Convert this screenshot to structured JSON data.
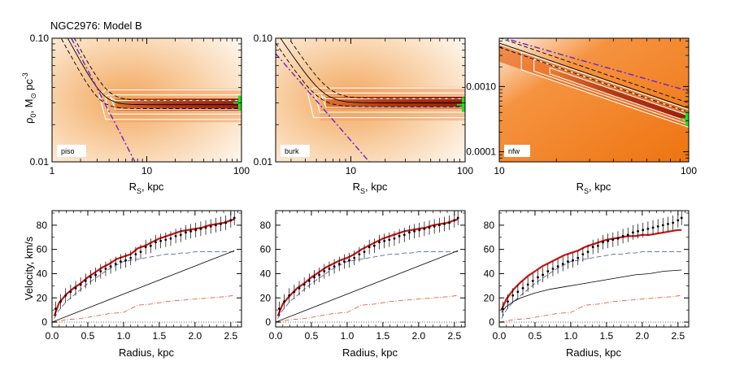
{
  "figure": {
    "title": "NGC2976: Model B",
    "top_ylabel_main": "ρ",
    "top_ylabel_sub": "0",
    "top_ylabel_rest": ", M",
    "top_ylabel_sun": "⊙",
    "top_ylabel_unit": "pc",
    "top_ylabel_exp": "-3",
    "top_xlabel_main": "R",
    "top_xlabel_sub": "S",
    "top_xlabel_rest": ", kpc",
    "bottom_ylabel": "Velocity, km/s",
    "bottom_xlabel": "Radius, kpc"
  },
  "colors": {
    "model": "#cc1111",
    "halo": "#000000",
    "disk": "#5566aa",
    "gas": "#e06040",
    "data": "#000000",
    "contour": "#ffffff",
    "pivot_line": "#6622cc",
    "marker": "#22dd22"
  },
  "chart_data": [
    {
      "type": "heatmap",
      "label": "piso",
      "x": {
        "scale": "log",
        "range": [
          1,
          100
        ],
        "tick_values": [
          1,
          10,
          100
        ],
        "tick_labels": [
          "1",
          "10",
          "100"
        ]
      },
      "y": {
        "scale": "log",
        "range": [
          0.01,
          0.1
        ],
        "tick_values": [
          0.01,
          0.1
        ],
        "tick_labels": [
          "0.01",
          "0.10"
        ]
      },
      "ridge_rho": 0.029,
      "ridge_onset_rs": 4.5,
      "steep_rho_at_rs1": 0.17,
      "steep_slope": -1.4,
      "pivot_line": {
        "rs": [
          1.6,
          7.5
        ],
        "rho": [
          0.1,
          0.01
        ]
      },
      "best_fit": {
        "rs": 100,
        "rho": 0.03
      }
    },
    {
      "type": "heatmap",
      "label": "burk",
      "x": {
        "scale": "log",
        "range": [
          2.2,
          100
        ],
        "tick_values": [
          10,
          100
        ],
        "tick_labels": [
          "10",
          "100"
        ]
      },
      "y": {
        "scale": "log",
        "range": [
          0.01,
          0.1
        ],
        "tick_values": [
          0.01,
          0.1
        ],
        "tick_labels": [
          "0.01",
          "0.10"
        ]
      },
      "ridge_rho": 0.03,
      "ridge_onset_rs": 6.0,
      "steep_rho_at_rs1": 0.33,
      "steep_slope": -1.35,
      "pivot_line": {
        "rs": [
          2.2,
          14.5
        ],
        "rho": [
          0.075,
          0.01
        ]
      },
      "best_fit": {
        "rs": 100,
        "rho": 0.029
      }
    },
    {
      "type": "heatmap",
      "label": "nfw",
      "x": {
        "scale": "log",
        "range": [
          10,
          100
        ],
        "tick_values": [
          10,
          100
        ],
        "tick_labels": [
          "10",
          "100"
        ]
      },
      "y": {
        "scale": "log",
        "range": [
          7e-05,
          0.0055
        ],
        "tick_values": [
          0.0001,
          0.001
        ],
        "tick_labels": [
          "0.0001",
          "0.0010"
        ]
      },
      "ridge_rho_at_10": 0.0032,
      "ridge_slope": -1.0,
      "pivot_line": {
        "rs": [
          10,
          100
        ],
        "rho": [
          0.0058,
          0.00085
        ]
      },
      "best_fit": {
        "rs": 100,
        "rho": 0.00032
      }
    },
    {
      "type": "line",
      "title": "",
      "xlabel": "Radius, kpc",
      "ylabel": "Velocity, km/s",
      "xlim": [
        0,
        2.65
      ],
      "ylim": [
        -4,
        92
      ],
      "x_ticks": [
        0,
        0.5,
        1,
        1.5,
        2,
        2.5
      ],
      "x_tick_labels": [
        "0.0",
        "0.5",
        "1.0",
        "1.5",
        "2.0",
        "2.5"
      ],
      "y_ticks": [
        0,
        20,
        40,
        60,
        80
      ],
      "y_tick_labels": [
        "0",
        "20",
        "40",
        "60",
        "80"
      ],
      "series": [
        {
          "name": "model",
          "x": [
            0.03,
            0.1,
            0.2,
            0.3,
            0.4,
            0.5,
            0.6,
            0.7,
            0.8,
            0.9,
            1.0,
            1.1,
            1.2,
            1.3,
            1.4,
            1.5,
            1.6,
            1.7,
            1.8,
            1.9,
            2.0,
            2.1,
            2.2,
            2.3,
            2.4,
            2.5,
            2.55
          ],
          "y": [
            5,
            16,
            23,
            28,
            32,
            37,
            41,
            45,
            48,
            52,
            54,
            56,
            61,
            63,
            66,
            69,
            71,
            73,
            75,
            76,
            77,
            78,
            80,
            81,
            82,
            84,
            85
          ]
        },
        {
          "name": "halo",
          "x": [
            0,
            2.55
          ],
          "y": [
            0,
            59
          ]
        },
        {
          "name": "disk",
          "x": [
            0.03,
            0.1,
            0.2,
            0.3,
            0.4,
            0.5,
            0.6,
            0.7,
            0.8,
            0.9,
            1.0,
            1.1,
            1.2,
            1.3,
            1.4,
            1.5,
            1.6,
            1.7,
            1.8,
            1.9,
            2.0,
            2.1,
            2.2,
            2.3,
            2.4,
            2.5,
            2.55
          ],
          "y": [
            3,
            10,
            17,
            22,
            27,
            32,
            36,
            40,
            44,
            47,
            50,
            51,
            52,
            53,
            54,
            55,
            56,
            56,
            57,
            57,
            58,
            58,
            58,
            58,
            58,
            58,
            58
          ]
        },
        {
          "name": "gas",
          "x": [
            0,
            0.2,
            0.4,
            0.6,
            0.8,
            1.0,
            1.1,
            1.2,
            1.4,
            1.6,
            1.8,
            2.0,
            2.2,
            2.4,
            2.55
          ],
          "y": [
            0,
            2,
            3,
            5,
            7,
            8,
            11,
            14,
            15,
            17,
            18,
            19,
            20,
            21,
            22
          ]
        },
        {
          "name": "data",
          "x": [
            0.05,
            0.12,
            0.19,
            0.26,
            0.33,
            0.4,
            0.47,
            0.54,
            0.61,
            0.68,
            0.75,
            0.82,
            0.89,
            0.96,
            1.03,
            1.1,
            1.17,
            1.24,
            1.31,
            1.38,
            1.45,
            1.52,
            1.59,
            1.66,
            1.73,
            1.8,
            1.87,
            1.94,
            2.01,
            2.08,
            2.15,
            2.22,
            2.29,
            2.36,
            2.43,
            2.5,
            2.55
          ],
          "y": [
            11,
            17,
            22,
            25,
            28,
            31,
            34,
            37,
            39,
            42,
            44,
            46,
            48,
            50,
            51,
            53,
            56,
            58,
            62,
            63,
            66,
            67,
            68,
            69,
            71,
            72,
            74,
            75,
            76,
            77,
            78,
            79,
            80,
            81,
            82,
            84,
            86
          ],
          "err": [
            6,
            6,
            6,
            6,
            6,
            6,
            6,
            6,
            6,
            6,
            6,
            6,
            6,
            6,
            6,
            6,
            6,
            6,
            6,
            6,
            6,
            6,
            6,
            6,
            6,
            6,
            6,
            6,
            6,
            6,
            6,
            6,
            6,
            6,
            6,
            6,
            6
          ]
        }
      ]
    },
    {
      "type": "line",
      "title": "",
      "xlabel": "Radius, kpc",
      "ylabel": "",
      "xlim": [
        0,
        2.65
      ],
      "ylim": [
        -4,
        92
      ],
      "x_ticks": [
        0,
        0.5,
        1,
        1.5,
        2,
        2.5
      ],
      "x_tick_labels": [
        "0.0",
        "0.5",
        "1.0",
        "1.5",
        "2.0",
        "2.5"
      ],
      "y_ticks": [
        0,
        20,
        40,
        60,
        80
      ],
      "y_tick_labels": [
        "0",
        "20",
        "40",
        "60",
        "80"
      ],
      "series": [
        {
          "name": "model",
          "x": [
            0.03,
            0.1,
            0.2,
            0.3,
            0.4,
            0.5,
            0.6,
            0.7,
            0.8,
            0.9,
            1.0,
            1.1,
            1.2,
            1.3,
            1.4,
            1.5,
            1.6,
            1.7,
            1.8,
            1.9,
            2.0,
            2.1,
            2.2,
            2.3,
            2.4,
            2.5,
            2.55
          ],
          "y": [
            5,
            15,
            22,
            28,
            32,
            37,
            41,
            45,
            48,
            51,
            53,
            56,
            60,
            63,
            66,
            69,
            71,
            73,
            75,
            76,
            77,
            78,
            80,
            81,
            82,
            84,
            85
          ]
        },
        {
          "name": "halo",
          "x": [
            0,
            2.55
          ],
          "y": [
            0,
            59
          ]
        },
        {
          "name": "disk",
          "x": [
            0.03,
            0.1,
            0.2,
            0.3,
            0.4,
            0.5,
            0.6,
            0.7,
            0.8,
            0.9,
            1.0,
            1.1,
            1.2,
            1.3,
            1.4,
            1.5,
            1.6,
            1.7,
            1.8,
            1.9,
            2.0,
            2.1,
            2.2,
            2.3,
            2.4,
            2.5,
            2.55
          ],
          "y": [
            3,
            10,
            17,
            22,
            27,
            32,
            36,
            40,
            44,
            47,
            50,
            51,
            52,
            53,
            54,
            55,
            56,
            56,
            57,
            57,
            58,
            58,
            58,
            58,
            58,
            58,
            58
          ]
        },
        {
          "name": "gas",
          "x": [
            0,
            0.2,
            0.4,
            0.6,
            0.8,
            1.0,
            1.1,
            1.2,
            1.4,
            1.6,
            1.8,
            2.0,
            2.2,
            2.4,
            2.55
          ],
          "y": [
            0,
            2,
            3,
            5,
            7,
            8,
            11,
            14,
            15,
            17,
            18,
            19,
            20,
            21,
            22
          ]
        },
        {
          "name": "data",
          "x": [
            0.05,
            0.12,
            0.19,
            0.26,
            0.33,
            0.4,
            0.47,
            0.54,
            0.61,
            0.68,
            0.75,
            0.82,
            0.89,
            0.96,
            1.03,
            1.1,
            1.17,
            1.24,
            1.31,
            1.38,
            1.45,
            1.52,
            1.59,
            1.66,
            1.73,
            1.8,
            1.87,
            1.94,
            2.01,
            2.08,
            2.15,
            2.22,
            2.29,
            2.36,
            2.43,
            2.5,
            2.55
          ],
          "y": [
            11,
            17,
            22,
            25,
            28,
            31,
            34,
            37,
            39,
            42,
            44,
            46,
            48,
            50,
            51,
            53,
            56,
            58,
            62,
            63,
            66,
            67,
            68,
            69,
            71,
            72,
            74,
            75,
            76,
            77,
            78,
            79,
            80,
            81,
            82,
            84,
            86
          ],
          "err": [
            6,
            6,
            6,
            6,
            6,
            6,
            6,
            6,
            6,
            6,
            6,
            6,
            6,
            6,
            6,
            6,
            6,
            6,
            6,
            6,
            6,
            6,
            6,
            6,
            6,
            6,
            6,
            6,
            6,
            6,
            6,
            6,
            6,
            6,
            6,
            6,
            6
          ]
        }
      ]
    },
    {
      "type": "line",
      "title": "",
      "xlabel": "Radius, kpc",
      "ylabel": "",
      "xlim": [
        0,
        2.65
      ],
      "ylim": [
        -4,
        92
      ],
      "x_ticks": [
        0,
        0.5,
        1,
        1.5,
        2,
        2.5
      ],
      "x_tick_labels": [
        "0.0",
        "0.5",
        "1.0",
        "1.5",
        "2.0",
        "2.5"
      ],
      "y_ticks": [
        0,
        20,
        40,
        60,
        80
      ],
      "y_tick_labels": [
        "0",
        "20",
        "40",
        "60",
        "80"
      ],
      "series": [
        {
          "name": "model",
          "x": [
            0.03,
            0.1,
            0.2,
            0.3,
            0.4,
            0.5,
            0.6,
            0.7,
            0.8,
            0.9,
            1.0,
            1.1,
            1.2,
            1.3,
            1.4,
            1.5,
            1.6,
            1.7,
            1.8,
            1.9,
            2.0,
            2.1,
            2.2,
            2.3,
            2.4,
            2.5,
            2.55
          ],
          "y": [
            10,
            19,
            27,
            33,
            38,
            42,
            46,
            49,
            52,
            55,
            57,
            59,
            62,
            64,
            66,
            68,
            69,
            70,
            71,
            71,
            72,
            72,
            73,
            74,
            75,
            76,
            76
          ]
        },
        {
          "name": "halo",
          "x": [
            0.03,
            0.1,
            0.2,
            0.3,
            0.4,
            0.5,
            0.7,
            0.9,
            1.1,
            1.3,
            1.5,
            1.7,
            1.9,
            2.1,
            2.3,
            2.55
          ],
          "y": [
            8,
            13,
            17,
            20,
            22,
            24,
            27,
            29,
            31,
            33,
            35,
            37,
            39,
            40,
            42,
            43
          ]
        },
        {
          "name": "disk",
          "x": [
            0.03,
            0.1,
            0.2,
            0.3,
            0.4,
            0.5,
            0.6,
            0.7,
            0.8,
            0.9,
            1.0,
            1.1,
            1.2,
            1.3,
            1.4,
            1.5,
            1.6,
            1.7,
            1.8,
            1.9,
            2.0,
            2.1,
            2.2,
            2.3,
            2.4,
            2.5,
            2.55
          ],
          "y": [
            3,
            10,
            17,
            22,
            27,
            32,
            36,
            40,
            44,
            47,
            50,
            51,
            52,
            53,
            54,
            55,
            56,
            56,
            57,
            57,
            58,
            58,
            58,
            58,
            58,
            58,
            58
          ]
        },
        {
          "name": "gas",
          "x": [
            0,
            0.2,
            0.4,
            0.6,
            0.8,
            1.0,
            1.1,
            1.2,
            1.4,
            1.6,
            1.8,
            2.0,
            2.2,
            2.4,
            2.55
          ],
          "y": [
            0,
            2,
            3,
            5,
            7,
            8,
            11,
            14,
            15,
            17,
            18,
            19,
            20,
            21,
            22
          ]
        },
        {
          "name": "data",
          "x": [
            0.05,
            0.12,
            0.19,
            0.26,
            0.33,
            0.4,
            0.47,
            0.54,
            0.61,
            0.68,
            0.75,
            0.82,
            0.89,
            0.96,
            1.03,
            1.1,
            1.17,
            1.24,
            1.31,
            1.38,
            1.45,
            1.52,
            1.59,
            1.66,
            1.73,
            1.8,
            1.87,
            1.94,
            2.01,
            2.08,
            2.15,
            2.22,
            2.29,
            2.36,
            2.43,
            2.5,
            2.55
          ],
          "y": [
            11,
            17,
            22,
            25,
            28,
            31,
            34,
            37,
            39,
            42,
            44,
            46,
            48,
            50,
            51,
            53,
            56,
            58,
            62,
            63,
            66,
            67,
            68,
            69,
            71,
            72,
            74,
            75,
            76,
            77,
            78,
            79,
            80,
            81,
            82,
            84,
            86
          ],
          "err": [
            6,
            6,
            6,
            6,
            6,
            6,
            6,
            6,
            6,
            6,
            6,
            6,
            6,
            6,
            6,
            6,
            6,
            6,
            6,
            6,
            6,
            6,
            6,
            6,
            6,
            6,
            6,
            6,
            6,
            6,
            6,
            6,
            6,
            6,
            6,
            6,
            6
          ]
        }
      ]
    }
  ]
}
